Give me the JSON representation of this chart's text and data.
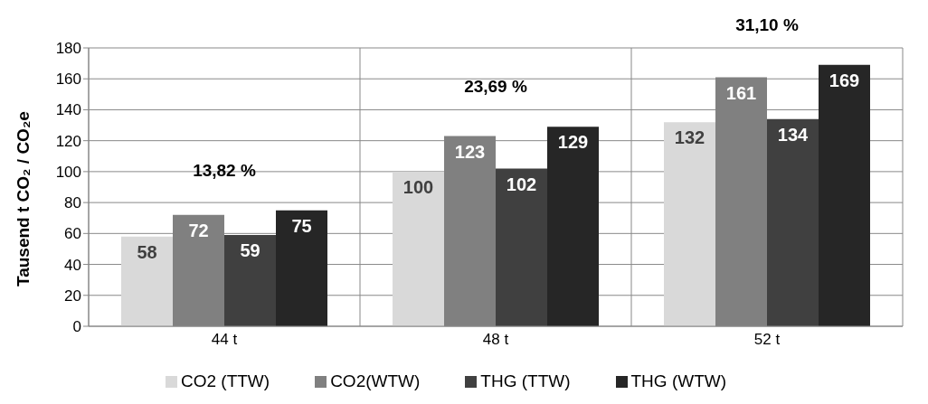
{
  "chart_data": {
    "type": "bar",
    "ylabel": "Tausend t CO₂ / CO₂e",
    "categories": [
      "44 t",
      "48 t",
      "52 t"
    ],
    "series": [
      {
        "name": "CO2 (TTW)",
        "color": "#d9d9d9",
        "values": [
          58,
          100,
          132
        ]
      },
      {
        "name": "CO2(WTW)",
        "color": "#808080",
        "values": [
          72,
          123,
          161
        ]
      },
      {
        "name": "THG (TTW)",
        "color": "#404040",
        "values": [
          59,
          102,
          134
        ]
      },
      {
        "name": "THG (WTW)",
        "color": "#262626",
        "values": [
          75,
          129,
          169
        ]
      }
    ],
    "ylim": [
      0,
      180
    ],
    "yticks": [
      0,
      20,
      40,
      60,
      80,
      100,
      120,
      140,
      160,
      180
    ],
    "grid": true,
    "legend": "bottom",
    "data_labels": true,
    "annotations": [
      "13,82 %",
      "23,69 %",
      "31,10 %"
    ]
  }
}
